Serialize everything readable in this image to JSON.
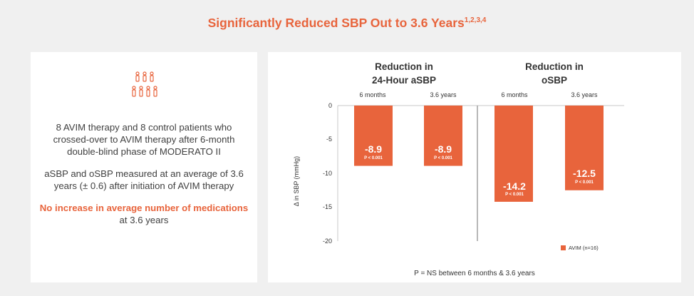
{
  "title": {
    "text": "Significantly Reduced SBP Out to 3.6 Years",
    "superscript": "1,2,3,4"
  },
  "left_panel": {
    "icon": "people-group-icon",
    "paragraph1": "8 AVIM therapy and 8 control patients who crossed-over to AVIM therapy after 6-month double-blind phase of MODERATO II",
    "paragraph2": "aSBP and oSBP measured at an average of 3.6 years (± 0.6) after initiation of AVIM therapy",
    "paragraph3_highlight": "No increase in average number of medications",
    "paragraph3_rest": " at 3.6 years"
  },
  "colors": {
    "accent": "#e8643c",
    "text": "#404040"
  },
  "chart_data": {
    "type": "bar",
    "groups": [
      {
        "label_line1": "Reduction in",
        "label_line2": "24-Hour aSBP"
      },
      {
        "label_line1": "Reduction in",
        "label_line2": "oSBP"
      }
    ],
    "categories": [
      "6 months",
      "3.6 years",
      "6 months",
      "3.6 years"
    ],
    "series": [
      {
        "name": "AVIM (n=16)",
        "values": [
          -8.9,
          -8.9,
          -14.2,
          -12.5
        ]
      }
    ],
    "value_labels": [
      "-8.9",
      "-8.9",
      "-14.2",
      "-12.5"
    ],
    "p_labels": [
      "P < 0.001",
      "P < 0.001",
      "P < 0.001",
      "P < 0.001"
    ],
    "ylabel": "Δ in SBP (mmHg)",
    "ylim": [
      -20,
      0
    ],
    "yticks": [
      0,
      -5,
      -10,
      -15,
      -20
    ],
    "legend_position": "bottom-right",
    "footnote": "P = NS between 6 months & 3.6 years"
  }
}
